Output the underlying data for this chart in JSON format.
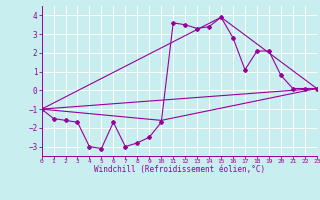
{
  "xlabel": "Windchill (Refroidissement éolien,°C)",
  "bg_color": "#c8eef0",
  "line_color": "#990099",
  "grid_color": "#ffffff",
  "xlim": [
    0,
    23
  ],
  "ylim": [
    -3.5,
    4.5
  ],
  "xticks": [
    0,
    1,
    2,
    3,
    4,
    5,
    6,
    7,
    8,
    9,
    10,
    11,
    12,
    13,
    14,
    15,
    16,
    17,
    18,
    19,
    20,
    21,
    22,
    23
  ],
  "yticks": [
    -3,
    -2,
    -1,
    0,
    1,
    2,
    3,
    4
  ],
  "main_x": [
    0,
    1,
    2,
    3,
    4,
    5,
    6,
    7,
    8,
    9,
    10,
    11,
    12,
    13,
    14,
    15,
    16,
    17,
    18,
    19,
    20,
    21,
    22,
    23
  ],
  "main_y": [
    -1.0,
    -1.5,
    -1.6,
    -1.7,
    -3.0,
    -3.1,
    -1.7,
    -3.0,
    -2.8,
    -2.5,
    -1.7,
    3.6,
    3.5,
    3.3,
    3.4,
    3.9,
    2.8,
    1.1,
    2.1,
    2.1,
    0.8,
    0.1,
    0.1,
    0.1
  ],
  "line1_x": [
    0,
    23
  ],
  "line1_y": [
    -1.0,
    0.1
  ],
  "line2_x": [
    0,
    10,
    23
  ],
  "line2_y": [
    -1.0,
    -1.6,
    0.1
  ],
  "line3_x": [
    0,
    15,
    23
  ],
  "line3_y": [
    -1.0,
    3.9,
    0.1
  ]
}
